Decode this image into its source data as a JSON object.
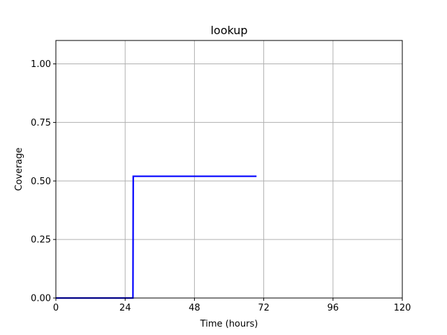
{
  "chart_data": {
    "type": "line",
    "title": "lookup",
    "xlabel": "Time (hours)",
    "ylabel": "Coverage",
    "xlim": [
      0,
      120
    ],
    "ylim": [
      0,
      1.1
    ],
    "xticks": [
      0,
      24,
      48,
      72,
      96,
      120
    ],
    "xtick_labels": [
      "0",
      "24",
      "48",
      "72",
      "96",
      "120"
    ],
    "yticks": [
      0.0,
      0.25,
      0.5,
      0.75,
      1.0
    ],
    "ytick_labels": [
      "0.00",
      "0.25",
      "0.50",
      "0.75",
      "1.00"
    ],
    "grid": true,
    "series": [
      {
        "color": "#0000ff",
        "x": [
          0,
          26.7,
          26.8,
          69.5
        ],
        "y": [
          0.0,
          0.0,
          0.52,
          0.52
        ]
      }
    ]
  }
}
